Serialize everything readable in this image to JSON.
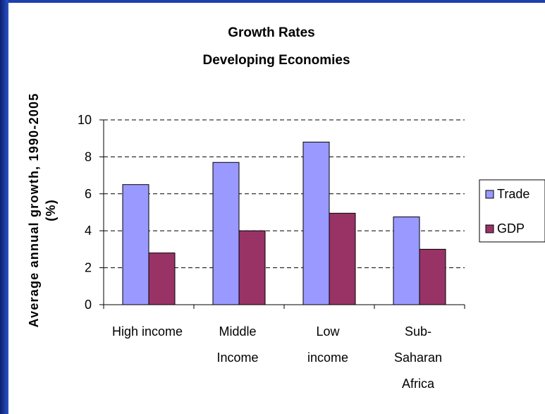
{
  "chart_data": {
    "type": "bar",
    "title_lines": [
      "Growth Rates",
      "Developing Economies"
    ],
    "ylabel_lines": [
      "Average annual growth, 1990-2005",
      "(%)"
    ],
    "xlabel": "",
    "categories": [
      [
        "High income"
      ],
      [
        "Middle",
        "Income"
      ],
      [
        "Low",
        "income"
      ],
      [
        "Sub-",
        "Saharan",
        "Africa"
      ]
    ],
    "series": [
      {
        "name": "Trade",
        "color": "#9999ff",
        "values": [
          6.5,
          7.7,
          8.8,
          4.75
        ]
      },
      {
        "name": "GDP",
        "color": "#993366",
        "values": [
          2.8,
          4.0,
          4.95,
          3.0
        ]
      }
    ],
    "ylim": [
      0,
      10
    ],
    "yticks": [
      0,
      2,
      4,
      6,
      8,
      10
    ],
    "grid": "horizontal dashed",
    "legend": "right"
  },
  "colors": {
    "background": "#1d3fae",
    "panel": "#ffffff"
  }
}
